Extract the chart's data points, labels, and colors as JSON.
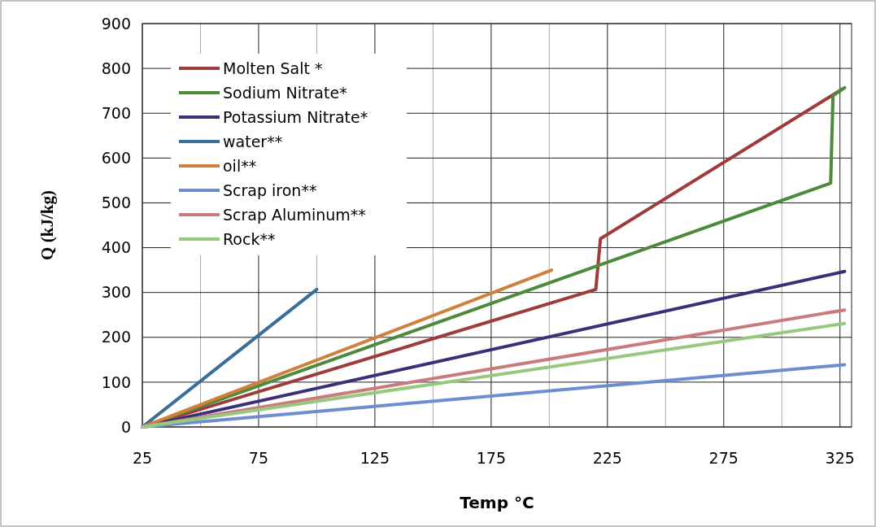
{
  "chart_data": {
    "type": "line",
    "xlabel": "Temp °C",
    "ylabel": "Q (kJ/kg)",
    "xlim": [
      25,
      330
    ],
    "ylim": [
      0,
      900
    ],
    "xticks": [
      25,
      {
        "value": 50,
        "label": null
      },
      75,
      {
        "value": 100,
        "label": null
      },
      125,
      {
        "value": 150,
        "label": null
      },
      175,
      {
        "value": 200,
        "label": null
      },
      225,
      {
        "value": 250,
        "label": null
      },
      275,
      {
        "value": 300,
        "label": null
      },
      325
    ],
    "yticks": [
      0,
      100,
      200,
      300,
      400,
      500,
      600,
      700,
      800,
      900
    ],
    "grid": true,
    "legend": "top left",
    "marker": "none",
    "line_style": "solid",
    "series": [
      {
        "name": "Molten Salt *",
        "color": "#9e3b3b",
        "x": [
          25,
          220,
          222,
          326
        ],
        "values": [
          0,
          307,
          420,
          754
        ]
      },
      {
        "name": "Sodium Nitrate*",
        "color": "#4e8a3c",
        "x": [
          25,
          321,
          322,
          327
        ],
        "values": [
          0,
          544,
          739,
          757
        ]
      },
      {
        "name": "Potassium Nitrate*",
        "color": "#3b2f78",
        "x": [
          25,
          327
        ],
        "values": [
          0,
          347
        ]
      },
      {
        "name": "water**",
        "color": "#3a6e98",
        "x": [
          25,
          100
        ],
        "values": [
          0,
          307
        ]
      },
      {
        "name": "oil**",
        "color": "#d0803a",
        "x": [
          25,
          201
        ],
        "values": [
          0,
          350
        ]
      },
      {
        "name": "Scrap iron**",
        "color": "#6c8ed0",
        "x": [
          25,
          327
        ],
        "values": [
          0,
          139
        ]
      },
      {
        "name": "Scrap Aluminum**",
        "color": "#c87c7a",
        "x": [
          25,
          327
        ],
        "values": [
          0,
          261
        ]
      },
      {
        "name": "Rock**",
        "color": "#98c87e",
        "x": [
          25,
          327
        ],
        "values": [
          0,
          231
        ]
      }
    ]
  }
}
